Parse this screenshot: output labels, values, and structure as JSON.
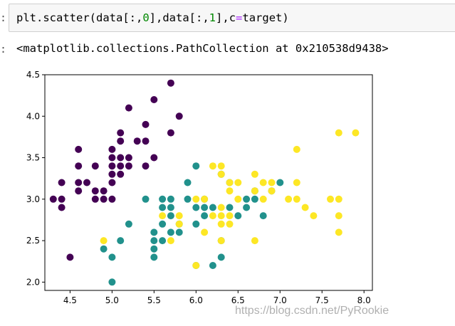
{
  "cell": {
    "input_code": {
      "fn": "plt.scatter",
      "open": "(",
      "arg1_prefix": "data[:,",
      "arg1_index": "0",
      "arg1_suffix": "],",
      "arg2_prefix": "data[:,",
      "arg2_index": "1",
      "arg2_suffix": "],",
      "kw_name": "c",
      "kw_eq": "=",
      "kw_value": "target",
      "close": ")"
    },
    "output_repr": "<matplotlib.collections.PathCollection at 0x210538d9438>"
  },
  "watermark": "https://blog.csdn.net/PyRookie",
  "colors": {
    "class0": "#440154",
    "class1": "#21918c",
    "class2": "#fde725",
    "axes": "#000000"
  },
  "chart_data": {
    "type": "scatter",
    "title": "",
    "xlabel": "",
    "ylabel": "",
    "xlim": [
      4.2,
      8.1
    ],
    "ylim": [
      1.9,
      4.5
    ],
    "x_ticks": [
      "4.5",
      "5.0",
      "5.5",
      "6.0",
      "6.5",
      "7.0",
      "7.5",
      "8.0"
    ],
    "y_ticks": [
      "2.0",
      "2.5",
      "3.0",
      "3.5",
      "4.0",
      "4.5"
    ],
    "grid": false,
    "legend": "none",
    "series": [
      {
        "color_key": "class0",
        "points": [
          [
            4.3,
            3.0
          ],
          [
            4.4,
            2.9
          ],
          [
            4.4,
            3.0
          ],
          [
            4.4,
            3.2
          ],
          [
            4.5,
            2.3
          ],
          [
            4.6,
            3.1
          ],
          [
            4.6,
            3.2
          ],
          [
            4.6,
            3.4
          ],
          [
            4.6,
            3.6
          ],
          [
            4.7,
            3.2
          ],
          [
            4.8,
            3.0
          ],
          [
            4.8,
            3.1
          ],
          [
            4.8,
            3.4
          ],
          [
            4.9,
            3.0
          ],
          [
            4.9,
            3.1
          ],
          [
            5.0,
            3.0
          ],
          [
            5.0,
            3.2
          ],
          [
            5.0,
            3.3
          ],
          [
            5.0,
            3.4
          ],
          [
            5.0,
            3.5
          ],
          [
            5.0,
            3.6
          ],
          [
            5.1,
            3.3
          ],
          [
            5.1,
            3.4
          ],
          [
            5.1,
            3.5
          ],
          [
            5.1,
            3.7
          ],
          [
            5.1,
            3.8
          ],
          [
            5.2,
            3.4
          ],
          [
            5.2,
            3.5
          ],
          [
            5.2,
            4.1
          ],
          [
            5.3,
            3.7
          ],
          [
            5.4,
            3.4
          ],
          [
            5.4,
            3.7
          ],
          [
            5.4,
            3.9
          ],
          [
            5.5,
            3.5
          ],
          [
            5.5,
            4.2
          ],
          [
            5.7,
            3.8
          ],
          [
            5.7,
            4.4
          ],
          [
            5.8,
            4.0
          ]
        ]
      },
      {
        "color_key": "class1",
        "points": [
          [
            4.9,
            2.4
          ],
          [
            5.0,
            2.0
          ],
          [
            5.0,
            2.3
          ],
          [
            5.1,
            2.5
          ],
          [
            5.2,
            2.7
          ],
          [
            5.4,
            3.0
          ],
          [
            5.5,
            2.3
          ],
          [
            5.5,
            2.4
          ],
          [
            5.5,
            2.5
          ],
          [
            5.5,
            2.6
          ],
          [
            5.6,
            2.5
          ],
          [
            5.6,
            2.7
          ],
          [
            5.6,
            2.9
          ],
          [
            5.6,
            3.0
          ],
          [
            5.7,
            2.6
          ],
          [
            5.7,
            2.8
          ],
          [
            5.7,
            2.9
          ],
          [
            5.7,
            3.0
          ],
          [
            5.8,
            2.6
          ],
          [
            5.8,
            2.7
          ],
          [
            5.9,
            3.0
          ],
          [
            5.9,
            3.2
          ],
          [
            6.0,
            2.2
          ],
          [
            6.0,
            2.7
          ],
          [
            6.0,
            2.9
          ],
          [
            6.0,
            3.4
          ],
          [
            6.1,
            2.8
          ],
          [
            6.1,
            2.9
          ],
          [
            6.1,
            3.0
          ],
          [
            6.2,
            2.2
          ],
          [
            6.2,
            2.9
          ],
          [
            6.3,
            2.3
          ],
          [
            6.3,
            2.5
          ],
          [
            6.3,
            3.3
          ],
          [
            6.4,
            2.9
          ],
          [
            6.4,
            3.2
          ],
          [
            6.5,
            2.8
          ],
          [
            6.6,
            2.9
          ],
          [
            6.6,
            3.0
          ],
          [
            6.7,
            3.0
          ],
          [
            6.7,
            3.1
          ],
          [
            6.8,
            2.8
          ],
          [
            6.9,
            3.1
          ],
          [
            7.0,
            3.2
          ]
        ]
      },
      {
        "color_key": "class2",
        "points": [
          [
            4.9,
            2.5
          ],
          [
            5.6,
            2.8
          ],
          [
            5.7,
            2.5
          ],
          [
            5.8,
            2.7
          ],
          [
            5.8,
            2.8
          ],
          [
            6.0,
            2.2
          ],
          [
            6.0,
            3.0
          ],
          [
            6.1,
            2.6
          ],
          [
            6.1,
            3.0
          ],
          [
            6.2,
            2.8
          ],
          [
            6.2,
            3.4
          ],
          [
            6.3,
            2.5
          ],
          [
            6.3,
            2.7
          ],
          [
            6.3,
            2.8
          ],
          [
            6.3,
            2.9
          ],
          [
            6.3,
            3.3
          ],
          [
            6.3,
            3.4
          ],
          [
            6.4,
            2.7
          ],
          [
            6.4,
            2.8
          ],
          [
            6.4,
            3.1
          ],
          [
            6.4,
            3.2
          ],
          [
            6.5,
            3.0
          ],
          [
            6.5,
            3.2
          ],
          [
            6.7,
            2.5
          ],
          [
            6.7,
            3.1
          ],
          [
            6.7,
            3.3
          ],
          [
            6.8,
            3.0
          ],
          [
            6.8,
            3.2
          ],
          [
            6.9,
            3.1
          ],
          [
            6.9,
            3.2
          ],
          [
            7.1,
            3.0
          ],
          [
            7.2,
            3.0
          ],
          [
            7.2,
            3.2
          ],
          [
            7.2,
            3.6
          ],
          [
            7.3,
            2.9
          ],
          [
            7.4,
            2.8
          ],
          [
            7.6,
            3.0
          ],
          [
            7.7,
            2.6
          ],
          [
            7.7,
            2.8
          ],
          [
            7.7,
            3.0
          ],
          [
            7.7,
            3.8
          ],
          [
            7.9,
            3.8
          ]
        ]
      }
    ]
  }
}
